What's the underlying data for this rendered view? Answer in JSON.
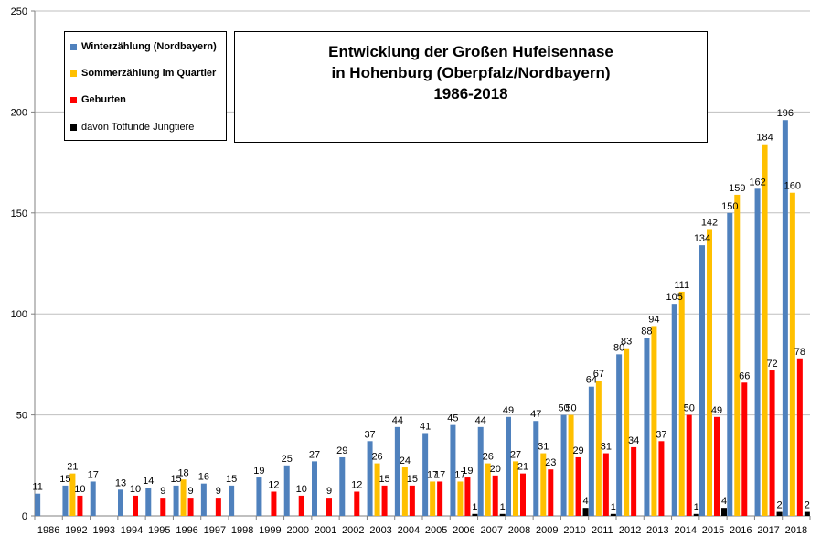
{
  "chart_data": {
    "type": "bar",
    "title_lines": [
      "Entwicklung  der Großen  Hufeisennase",
      "in Hohenburg (Oberpfalz/Nordbayern)",
      "1986-2018"
    ],
    "categories": [
      "1986",
      "1992",
      "1993",
      "1994",
      "1995",
      "1996",
      "1997",
      "1998",
      "1999",
      "2000",
      "2001",
      "2002",
      "2003",
      "2004",
      "2005",
      "2006",
      "2007",
      "2008",
      "2009",
      "2010",
      "2011",
      "2012",
      "2013",
      "2014",
      "2015",
      "2016",
      "2017",
      "2018"
    ],
    "ylim": [
      0,
      250
    ],
    "yticks": [
      "0",
      "50",
      "100",
      "150",
      "200",
      "250"
    ],
    "grid": true,
    "legend_position": "top-left",
    "series": [
      {
        "name": "Winterzählung (Nordbayern)",
        "color": "#4f81bd",
        "values": [
          11,
          15,
          17,
          13,
          14,
          15,
          16,
          15,
          19,
          25,
          27,
          29,
          37,
          44,
          41,
          45,
          44,
          49,
          47,
          50,
          64,
          80,
          88,
          105,
          134,
          150,
          162,
          196
        ]
      },
      {
        "name": "Sommerzählung im Quartier",
        "color": "#ffc000",
        "values": [
          null,
          21,
          null,
          null,
          null,
          18,
          null,
          null,
          null,
          null,
          null,
          null,
          26,
          24,
          17,
          17,
          26,
          27,
          31,
          50,
          67,
          83,
          94,
          111,
          142,
          159,
          184,
          160
        ]
      },
      {
        "name": "Geburten",
        "color": "#ff0000",
        "values": [
          null,
          10,
          null,
          10,
          9,
          9,
          9,
          null,
          12,
          10,
          9,
          12,
          15,
          15,
          17,
          19,
          20,
          21,
          23,
          29,
          31,
          34,
          37,
          50,
          49,
          66,
          72,
          78
        ]
      },
      {
        "name": "davon Totfunde Jungtiere",
        "color": "#000000",
        "values": [
          null,
          null,
          null,
          null,
          null,
          null,
          null,
          null,
          null,
          null,
          null,
          null,
          null,
          null,
          null,
          1,
          1,
          null,
          null,
          4,
          1,
          null,
          null,
          1,
          4,
          null,
          2,
          2
        ]
      }
    ]
  }
}
